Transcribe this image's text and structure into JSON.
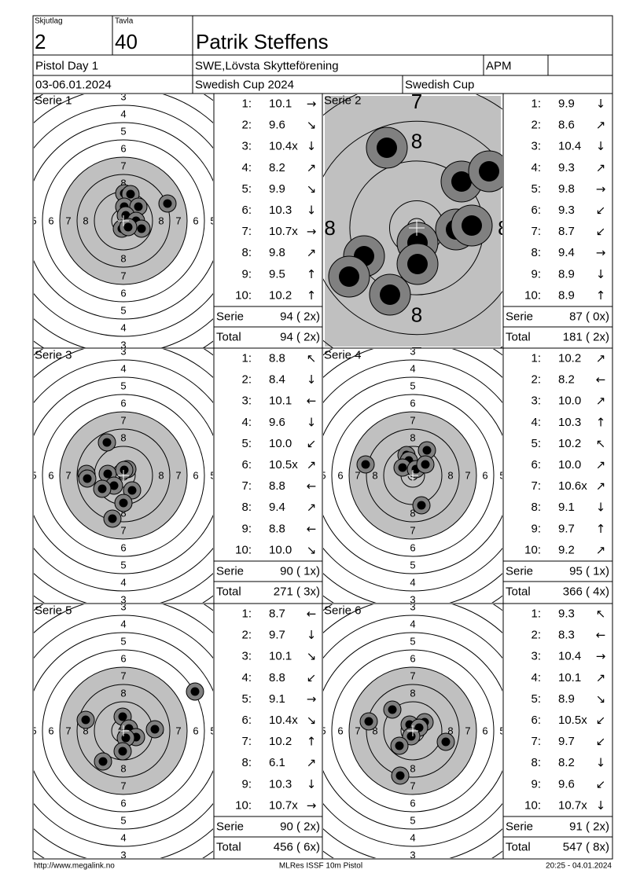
{
  "header": {
    "skjutlag_label": "Skjutlag",
    "skjutlag": "2",
    "tavla_label": "Tavla",
    "tavla": "40",
    "name": "Patrik Steffens",
    "event": "Pistol Day 1",
    "club": "SWE,Lövsta Skytteförening",
    "class": "APM",
    "date": "03-06.01.2024",
    "competition": "Swedish Cup 2024",
    "cup": "Swedish Cup"
  },
  "targets": {
    "ring_labels": [
      "3",
      "4",
      "5",
      "6",
      "7",
      "8"
    ],
    "zoom_ring_labels": [
      "7",
      "8"
    ]
  },
  "series": [
    {
      "label": "Serie 1",
      "shots": [
        [
          "1:",
          "10.1",
          "→"
        ],
        [
          "2:",
          "9.6",
          "↘"
        ],
        [
          "3:",
          "10.4x",
          "↓"
        ],
        [
          "4:",
          "8.2",
          "↗"
        ],
        [
          "5:",
          "9.9",
          "↘"
        ],
        [
          "6:",
          "10.3",
          "↓"
        ],
        [
          "7:",
          "10.7x",
          "→"
        ],
        [
          "8:",
          "9.8",
          "↗"
        ],
        [
          "9:",
          "9.5",
          "↑"
        ],
        [
          "10:",
          "10.2",
          "↑"
        ]
      ],
      "serie_label": "Serie",
      "serie_score": "94 ( 2x)",
      "total_label": "Total",
      "total_score": "94 ( 2x)"
    },
    {
      "label": "Serie 2",
      "zoomed": true,
      "shots": [
        [
          "1:",
          "9.9",
          "↓"
        ],
        [
          "2:",
          "8.6",
          "↗"
        ],
        [
          "3:",
          "10.4",
          "↓"
        ],
        [
          "4:",
          "9.3",
          "↗"
        ],
        [
          "5:",
          "9.8",
          "→"
        ],
        [
          "6:",
          "9.3",
          "↙"
        ],
        [
          "7:",
          "8.7",
          "↙"
        ],
        [
          "8:",
          "9.4",
          "→"
        ],
        [
          "9:",
          "8.9",
          "↓"
        ],
        [
          "10:",
          "8.9",
          "↑"
        ]
      ],
      "serie_label": "Serie",
      "serie_score": "87 ( 0x)",
      "total_label": "Total",
      "total_score": "181 ( 2x)"
    },
    {
      "label": "Serie 3",
      "shots": [
        [
          "1:",
          "8.8",
          "↖"
        ],
        [
          "2:",
          "8.4",
          "↓"
        ],
        [
          "3:",
          "10.1",
          "←"
        ],
        [
          "4:",
          "9.6",
          "↓"
        ],
        [
          "5:",
          "10.0",
          "↙"
        ],
        [
          "6:",
          "10.5x",
          "↗"
        ],
        [
          "7:",
          "8.8",
          "←"
        ],
        [
          "8:",
          "9.4",
          "↗"
        ],
        [
          "9:",
          "8.8",
          "←"
        ],
        [
          "10:",
          "10.0",
          "↘"
        ]
      ],
      "serie_label": "Serie",
      "serie_score": "90 ( 1x)",
      "total_label": "Total",
      "total_score": "271 ( 3x)"
    },
    {
      "label": "Serie 4",
      "shots": [
        [
          "1:",
          "10.2",
          "↗"
        ],
        [
          "2:",
          "8.2",
          "←"
        ],
        [
          "3:",
          "10.0",
          "↗"
        ],
        [
          "4:",
          "10.3",
          "↑"
        ],
        [
          "5:",
          "10.2",
          "↖"
        ],
        [
          "6:",
          "10.0",
          "↗"
        ],
        [
          "7:",
          "10.6x",
          "↗"
        ],
        [
          "8:",
          "9.1",
          "↓"
        ],
        [
          "9:",
          "9.7",
          "↑"
        ],
        [
          "10:",
          "9.2",
          "↗"
        ]
      ],
      "serie_label": "Serie",
      "serie_score": "95 ( 1x)",
      "total_label": "Total",
      "total_score": "366 ( 4x)"
    },
    {
      "label": "Serie 5",
      "shots": [
        [
          "1:",
          "8.7",
          "←"
        ],
        [
          "2:",
          "9.7",
          "↓"
        ],
        [
          "3:",
          "10.1",
          "↘"
        ],
        [
          "4:",
          "8.8",
          "↙"
        ],
        [
          "5:",
          "9.1",
          "→"
        ],
        [
          "6:",
          "10.4x",
          "↘"
        ],
        [
          "7:",
          "10.2",
          "↑"
        ],
        [
          "8:",
          "6.1",
          "↗"
        ],
        [
          "9:",
          "10.3",
          "↓"
        ],
        [
          "10:",
          "10.7x",
          "→"
        ]
      ],
      "serie_label": "Serie",
      "serie_score": "90 ( 2x)",
      "total_label": "Total",
      "total_score": "456 ( 6x)"
    },
    {
      "label": "Serie 6",
      "shots": [
        [
          "1:",
          "9.3",
          "↖"
        ],
        [
          "2:",
          "8.3",
          "←"
        ],
        [
          "3:",
          "10.4",
          "→"
        ],
        [
          "4:",
          "10.1",
          "↗"
        ],
        [
          "5:",
          "8.9",
          "↘"
        ],
        [
          "6:",
          "10.5x",
          "↙"
        ],
        [
          "7:",
          "9.7",
          "↙"
        ],
        [
          "8:",
          "8.2",
          "↓"
        ],
        [
          "9:",
          "9.6",
          "↙"
        ],
        [
          "10:",
          "10.7x",
          "↓"
        ]
      ],
      "serie_label": "Serie",
      "serie_score": "91 ( 2x)",
      "total_label": "Total",
      "total_score": "547 ( 8x)"
    }
  ],
  "footer": {
    "url": "http://www.megalink.no",
    "program": "MLRes ISSF 10m Pistol",
    "timestamp": "20:25 - 04.01.2024"
  }
}
